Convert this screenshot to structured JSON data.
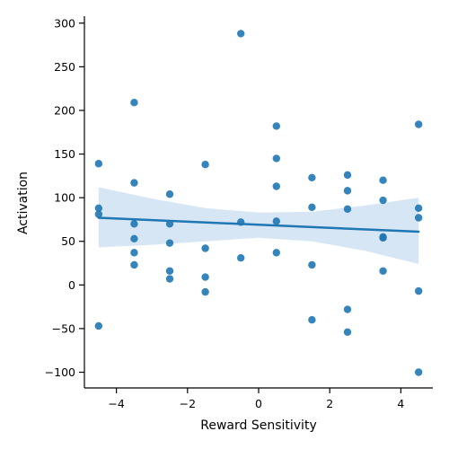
{
  "chart_data": {
    "type": "scatter",
    "title": "",
    "xlabel": "Reward Sensitivity",
    "ylabel": "Activation",
    "xlim": [
      -4.9,
      4.9
    ],
    "ylim": [
      -118,
      308
    ],
    "x_ticks": [
      -4,
      -2,
      0,
      2,
      4
    ],
    "y_ticks": [
      -100,
      -50,
      0,
      50,
      100,
      150,
      200,
      250,
      300
    ],
    "x_tick_labels": [
      "−4",
      "−2",
      "0",
      "2",
      "4"
    ],
    "y_tick_labels": [
      "−100",
      "−50",
      "0",
      "50",
      "100",
      "150",
      "200",
      "250",
      "300"
    ],
    "grid": false,
    "series": [
      {
        "color": "#1f77b4",
        "points": [
          {
            "x": -4.5,
            "y": 139
          },
          {
            "x": -4.5,
            "y": 88
          },
          {
            "x": -4.5,
            "y": 81
          },
          {
            "x": -4.5,
            "y": -47
          },
          {
            "x": -3.5,
            "y": 209
          },
          {
            "x": -3.5,
            "y": 117
          },
          {
            "x": -3.5,
            "y": 70
          },
          {
            "x": -3.5,
            "y": 53
          },
          {
            "x": -3.5,
            "y": 37
          },
          {
            "x": -3.5,
            "y": 23
          },
          {
            "x": -2.5,
            "y": 104
          },
          {
            "x": -2.5,
            "y": 70
          },
          {
            "x": -2.5,
            "y": 48
          },
          {
            "x": -2.5,
            "y": 16
          },
          {
            "x": -2.5,
            "y": 7
          },
          {
            "x": -1.5,
            "y": 138
          },
          {
            "x": -1.5,
            "y": 42
          },
          {
            "x": -1.5,
            "y": 9
          },
          {
            "x": -1.5,
            "y": -8
          },
          {
            "x": -0.5,
            "y": 288
          },
          {
            "x": -0.5,
            "y": 72
          },
          {
            "x": -0.5,
            "y": 31
          },
          {
            "x": 0.5,
            "y": 182
          },
          {
            "x": 0.5,
            "y": 145
          },
          {
            "x": 0.5,
            "y": 113
          },
          {
            "x": 0.5,
            "y": 73
          },
          {
            "x": 0.5,
            "y": 37
          },
          {
            "x": 1.5,
            "y": 123
          },
          {
            "x": 1.5,
            "y": 89
          },
          {
            "x": 1.5,
            "y": 23
          },
          {
            "x": 1.5,
            "y": -40
          },
          {
            "x": 2.5,
            "y": 126
          },
          {
            "x": 2.5,
            "y": 108
          },
          {
            "x": 2.5,
            "y": 87
          },
          {
            "x": 2.5,
            "y": -28
          },
          {
            "x": 2.5,
            "y": -54
          },
          {
            "x": 3.5,
            "y": 120
          },
          {
            "x": 3.5,
            "y": 97
          },
          {
            "x": 3.5,
            "y": 55
          },
          {
            "x": 3.5,
            "y": 54
          },
          {
            "x": 3.5,
            "y": 16
          },
          {
            "x": 4.5,
            "y": 184
          },
          {
            "x": 4.5,
            "y": 88
          },
          {
            "x": 4.5,
            "y": 77
          },
          {
            "x": 4.5,
            "y": -7
          },
          {
            "x": 4.5,
            "y": -100
          }
        ]
      }
    ],
    "regression": {
      "color": "#1f77b4",
      "start": {
        "x": -4.5,
        "y": 77
      },
      "end": {
        "x": 4.5,
        "y": 61
      },
      "ci_upper": [
        {
          "x": -4.5,
          "y": 112
        },
        {
          "x": -3,
          "y": 99
        },
        {
          "x": -1.5,
          "y": 88
        },
        {
          "x": 0,
          "y": 83
        },
        {
          "x": 1.5,
          "y": 84
        },
        {
          "x": 3,
          "y": 91
        },
        {
          "x": 4.5,
          "y": 100
        }
      ],
      "ci_lower": [
        {
          "x": -4.5,
          "y": 43
        },
        {
          "x": -3,
          "y": 46
        },
        {
          "x": -1.5,
          "y": 50
        },
        {
          "x": 0,
          "y": 54
        },
        {
          "x": 1.5,
          "y": 50
        },
        {
          "x": 3,
          "y": 39
        },
        {
          "x": 4.5,
          "y": 24
        }
      ],
      "ci_color": "#c6dbef"
    }
  }
}
